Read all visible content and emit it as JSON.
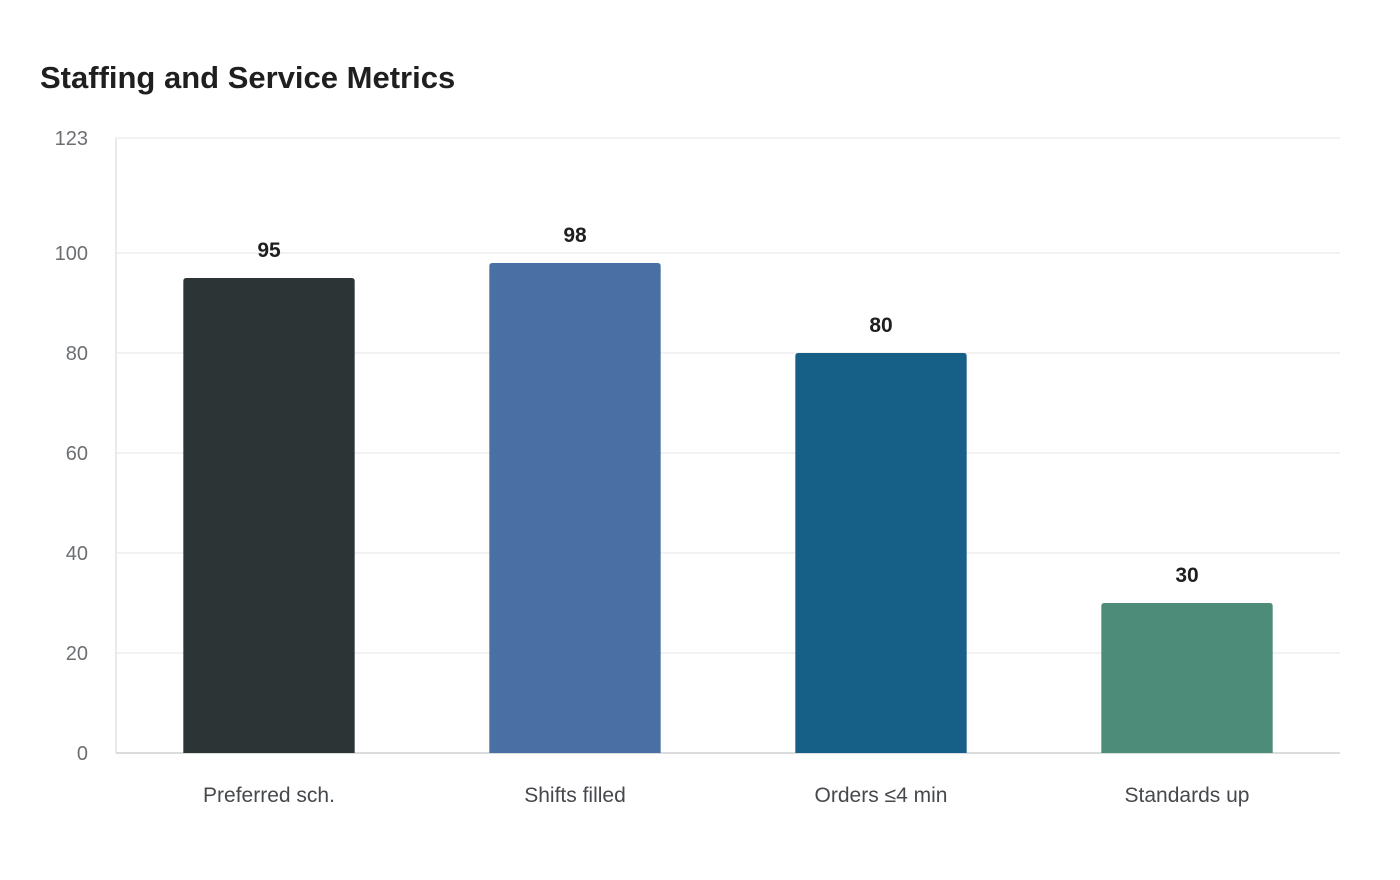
{
  "chart_data": {
    "type": "bar",
    "title": "Staffing and Service Metrics",
    "xlabel": "",
    "ylabel": "",
    "categories": [
      "Preferred sch.",
      "Shifts filled",
      "Orders ≤4 min",
      "Standards up"
    ],
    "values": [
      95,
      98,
      80,
      30
    ],
    "colors": [
      "#2d3436",
      "#4a6fa5",
      "#166088",
      "#4e8c7a"
    ],
    "ylim": [
      0,
      123
    ],
    "yticks": [
      0,
      20,
      40,
      60,
      80,
      100,
      123
    ],
    "grid": true,
    "legend": "none",
    "data_labels": true
  }
}
